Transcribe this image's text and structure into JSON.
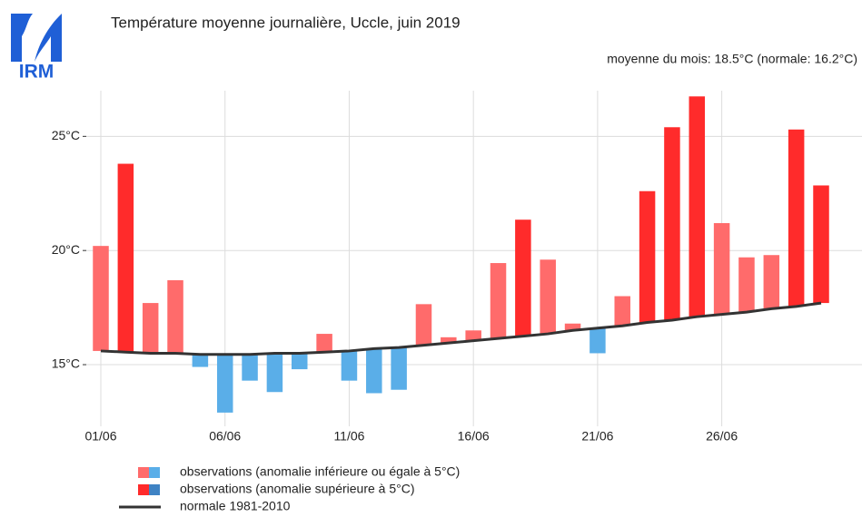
{
  "logo": {
    "text": "IRM"
  },
  "chart_data": {
    "type": "floating-bar",
    "title": "Température moyenne journalière, Uccle, juin 2019",
    "subtitle": "moyenne du mois: 18.5°C (normale: 16.2°C)",
    "categories": [
      "01/06",
      null,
      null,
      null,
      null,
      "06/06",
      null,
      null,
      null,
      null,
      "11/06",
      null,
      null,
      null,
      null,
      "16/06",
      null,
      null,
      null,
      null,
      "21/06",
      null,
      null,
      null,
      null,
      "26/06",
      null,
      null,
      null,
      null
    ],
    "observations": {
      "values": [
        20.2,
        23.8,
        17.7,
        18.7,
        14.9,
        12.9,
        14.3,
        13.8,
        14.8,
        16.35,
        14.3,
        13.75,
        13.9,
        17.65,
        16.2,
        16.5,
        19.45,
        21.35,
        19.6,
        16.8,
        15.5,
        18.0,
        22.6,
        25.4,
        26.75,
        21.2,
        19.7,
        19.8,
        25.3,
        22.85
      ],
      "colors": [
        "#ff6b6b",
        "#ff2b2b",
        "#ff6b6b",
        "#ff6b6b",
        "#5aaee8",
        "#5aaee8",
        "#5aaee8",
        "#5aaee8",
        "#5aaee8",
        "#ff6b6b",
        "#5aaee8",
        "#5aaee8",
        "#5aaee8",
        "#ff6b6b",
        "#ff6b6b",
        "#ff6b6b",
        "#ff6b6b",
        "#ff2b2b",
        "#ff6b6b",
        "#ff6b6b",
        "#5aaee8",
        "#ff6b6b",
        "#ff2b2b",
        "#ff2b2b",
        "#ff2b2b",
        "#ff6b6b",
        "#ff6b6b",
        "#ff6b6b",
        "#ff2b2b",
        "#ff2b2b"
      ]
    },
    "normal": {
      "name": "normale 1981-2010",
      "color": "#333333",
      "values": [
        15.6,
        15.55,
        15.5,
        15.5,
        15.45,
        15.45,
        15.45,
        15.5,
        15.5,
        15.55,
        15.6,
        15.7,
        15.75,
        15.85,
        15.95,
        16.05,
        16.15,
        16.25,
        16.35,
        16.5,
        16.6,
        16.7,
        16.85,
        16.95,
        17.1,
        17.2,
        17.3,
        17.45,
        17.55,
        17.7
      ]
    },
    "legend": [
      {
        "label": "observations (anomalie inférieure ou égale à 5°C)",
        "colors": [
          "#ff6b6b",
          "#5aaee8"
        ]
      },
      {
        "label": "observations (anomalie supérieure à 5°C)",
        "colors": [
          "#ff2b2b",
          "#3f83c4"
        ]
      }
    ],
    "ylim": [
      12.3,
      27
    ],
    "yticks": [
      {
        "value": 15,
        "label": "15°C"
      },
      {
        "value": 20,
        "label": "20°C"
      },
      {
        "value": 25,
        "label": "25°C"
      }
    ],
    "grid": true
  }
}
